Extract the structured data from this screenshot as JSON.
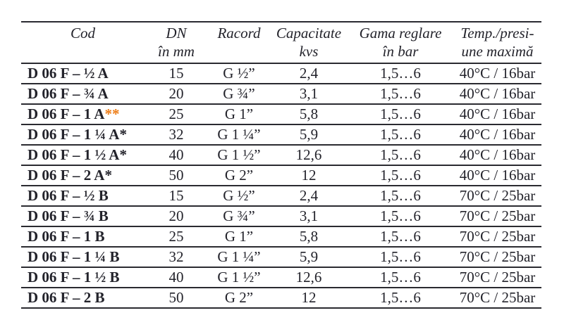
{
  "table": {
    "headers": [
      {
        "line1": "Cod",
        "line2": ""
      },
      {
        "line1": "DN",
        "line2": "în mm"
      },
      {
        "line1": "Racord",
        "line2": ""
      },
      {
        "line1": "Capacitate",
        "line2": "kvs"
      },
      {
        "line1": "Gama reglare",
        "line2": "în bar"
      },
      {
        "line1": "Temp./presi-",
        "line2": "une maximă"
      }
    ],
    "rows": [
      {
        "cod": "D 06 F – ½ A",
        "cod_mark": "",
        "dn": "15",
        "racord": "G ½”",
        "capacitate": "2,4",
        "gama": "1,5…6",
        "temp": "40°C / 16bar"
      },
      {
        "cod": "D 06 F – ¾ A",
        "cod_mark": "",
        "dn": "20",
        "racord": "G ¾”",
        "capacitate": "3,1",
        "gama": "1,5…6",
        "temp": "40°C / 16bar"
      },
      {
        "cod": "D 06 F – 1 A",
        "cod_mark": "**",
        "dn": "25",
        "racord": "G 1”",
        "capacitate": "5,8",
        "gama": "1,5…6",
        "temp": "40°C / 16bar"
      },
      {
        "cod": "D 06 F – 1 ¼ A*",
        "cod_mark": "",
        "dn": "32",
        "racord": "G 1 ¼”",
        "capacitate": "5,9",
        "gama": "1,5…6",
        "temp": "40°C / 16bar"
      },
      {
        "cod": "D 06 F – 1 ½ A*",
        "cod_mark": "",
        "dn": "40",
        "racord": "G 1 ½”",
        "capacitate": "12,6",
        "gama": "1,5…6",
        "temp": "40°C / 16bar"
      },
      {
        "cod": "D 06 F – 2 A*",
        "cod_mark": "",
        "dn": "50",
        "racord": "G 2”",
        "capacitate": "12",
        "gama": "1,5…6",
        "temp": "40°C / 16bar"
      },
      {
        "cod": "D 06 F – ½ B",
        "cod_mark": "",
        "dn": "15",
        "racord": "G ½”",
        "capacitate": "2,4",
        "gama": "1,5…6",
        "temp": "70°C / 25bar"
      },
      {
        "cod": "D 06 F – ¾ B",
        "cod_mark": "",
        "dn": "20",
        "racord": "G ¾”",
        "capacitate": "3,1",
        "gama": "1,5…6",
        "temp": "70°C / 25bar"
      },
      {
        "cod": "D 06 F – 1 B",
        "cod_mark": "",
        "dn": "25",
        "racord": "G 1”",
        "capacitate": "5,8",
        "gama": "1,5…6",
        "temp": "70°C / 25bar"
      },
      {
        "cod": "D 06 F – 1 ¼ B",
        "cod_mark": "",
        "dn": "32",
        "racord": "G 1 ¼”",
        "capacitate": "5,9",
        "gama": "1,5…6",
        "temp": "70°C / 25bar"
      },
      {
        "cod": "D 06 F – 1 ½ B",
        "cod_mark": "",
        "dn": "40",
        "racord": "G 1 ½”",
        "capacitate": "12,6",
        "gama": "1,5…6",
        "temp": "70°C / 25bar"
      },
      {
        "cod": "D 06 F – 2 B",
        "cod_mark": "",
        "dn": "50",
        "racord": "G 2”",
        "capacitate": "12",
        "gama": "1,5…6",
        "temp": "70°C / 25bar"
      }
    ]
  },
  "colors": {
    "text": "#23232B",
    "border": "#2A2A30",
    "asterisk_accent": "#ED7D17"
  }
}
